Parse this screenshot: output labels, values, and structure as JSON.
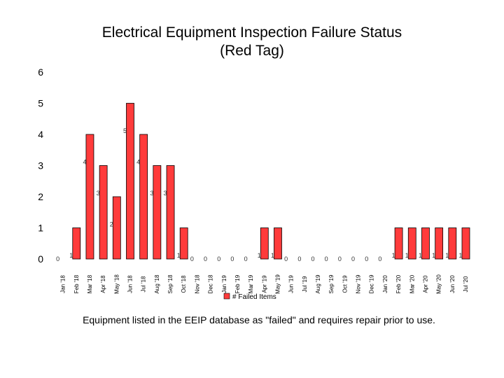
{
  "colors": {
    "bar_fill": "#ff3b3b",
    "bar_stroke": "#000000"
  },
  "chart_data": {
    "type": "bar",
    "title_lines": [
      "Electrical Equipment Inspection Failure Status",
      "(Red Tag)"
    ],
    "categories": [
      "Jan '18",
      "Feb '18",
      "Mar '18",
      "Apr '18",
      "May '18",
      "Jun '18",
      "Jul '18",
      "Aug '18",
      "Sep '18",
      "Oct '18",
      "Nov '18",
      "Dec '18",
      "Jan '19",
      "Feb '19",
      "Mar '19",
      "Apr '19",
      "May '19",
      "Jun '19",
      "Jul '19",
      "Aug '19",
      "Sep '19",
      "Oct '19",
      "Nov '19",
      "Dec '19",
      "Jan '20",
      "Feb '20",
      "Mar '20",
      "Apr '20",
      "May '20",
      "Jun '20",
      "Jul '20"
    ],
    "series": [
      {
        "name": "# Failed Items",
        "values": [
          0,
          1,
          4,
          3,
          2,
          5,
          4,
          3,
          3,
          1,
          0,
          0,
          0,
          0,
          0,
          1,
          1,
          0,
          0,
          0,
          0,
          0,
          0,
          0,
          0,
          1,
          1,
          1,
          1,
          1,
          1
        ]
      }
    ],
    "y_ticks": [
      "0",
      "1",
      "2",
      "3",
      "4",
      "5",
      "6"
    ],
    "ylim": [
      0,
      6
    ],
    "grid": false,
    "legend_position": "bottom"
  },
  "caption": "Equipment listed in the EEIP database as \"failed\" and requires repair prior to use."
}
